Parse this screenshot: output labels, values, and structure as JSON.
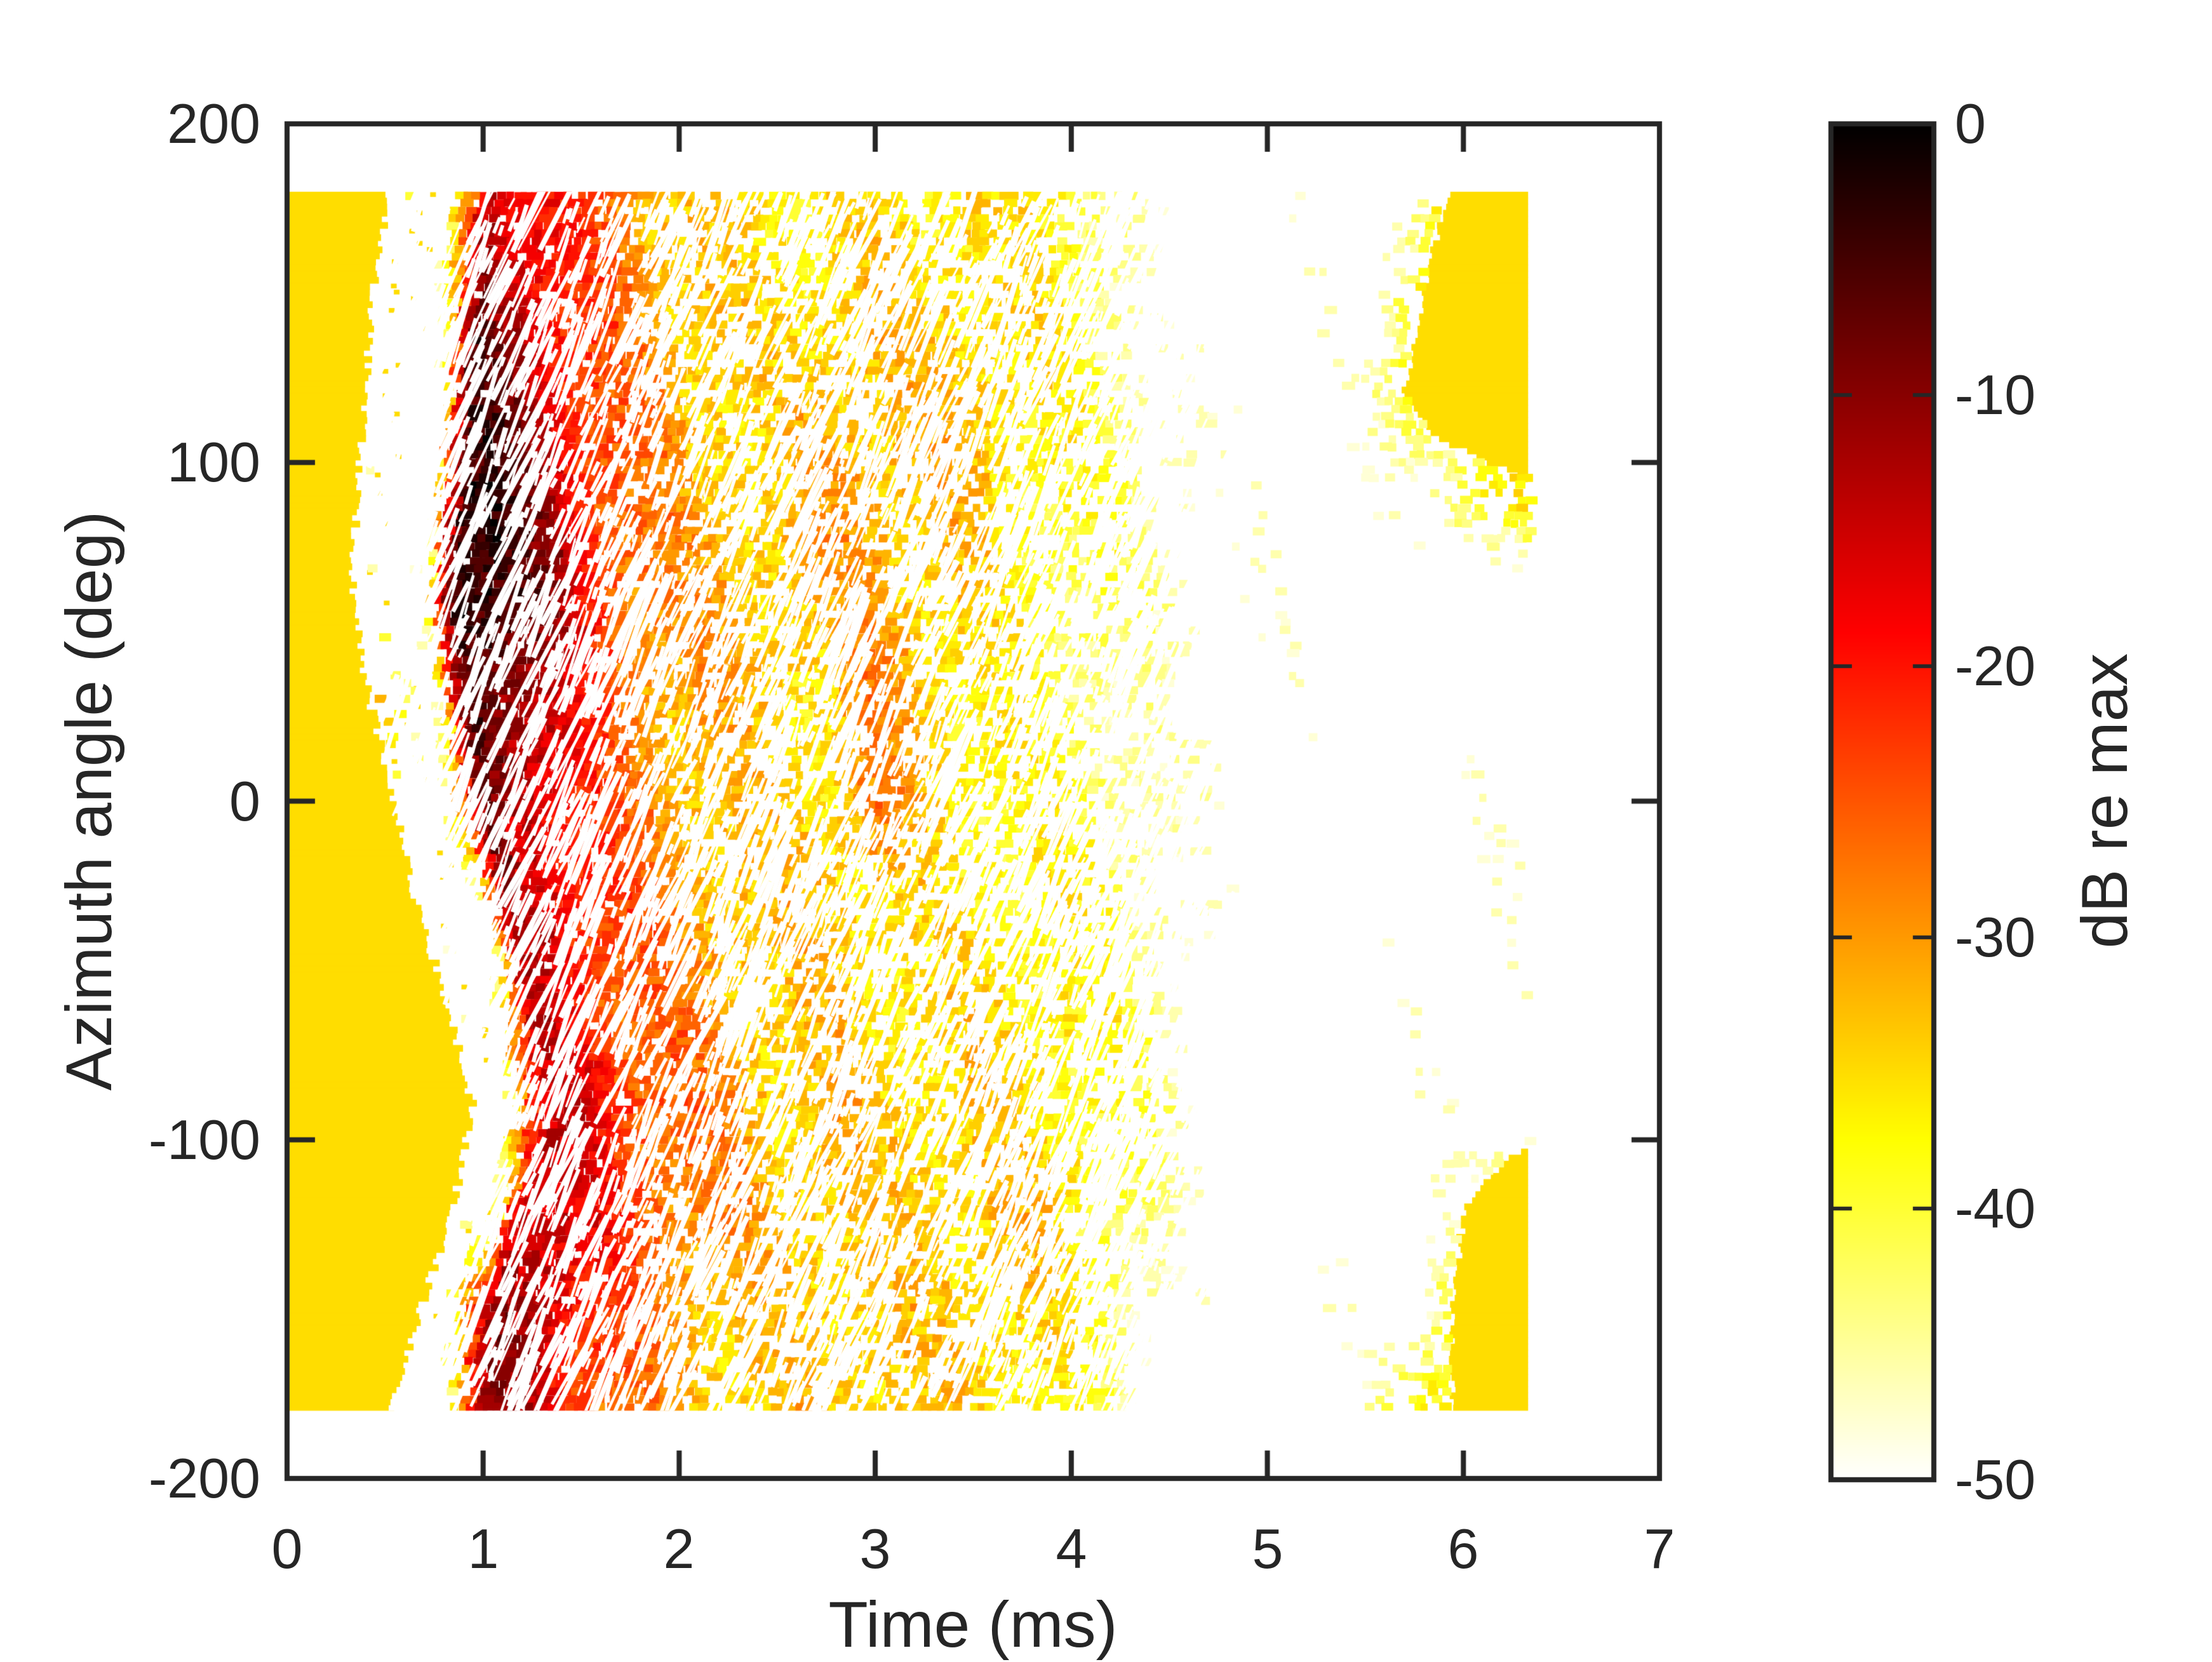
{
  "figure": {
    "background": "#ffffff",
    "frame_color": "#262626",
    "text_color": "#262626",
    "floor_color": "#ffdd00"
  },
  "axes": {
    "xlabel": "Time (ms)",
    "ylabel": "Azimuth angle (deg)",
    "xlim": [
      0,
      7
    ],
    "ylim": [
      -200,
      200
    ],
    "xticks": [
      0,
      1,
      2,
      3,
      4,
      5,
      6,
      7
    ],
    "yticks": [
      200,
      100,
      0,
      -100,
      -200
    ],
    "xticklabels": [
      "0",
      "1",
      "2",
      "3",
      "4",
      "5",
      "6",
      "7"
    ],
    "yticklabels": [
      "200",
      "100",
      "0",
      "-100",
      "-200"
    ]
  },
  "colorbar": {
    "label": "dB re max",
    "limits": [
      -50,
      0
    ],
    "ticks": [
      0,
      -10,
      -20,
      -30,
      -40,
      -50
    ],
    "ticklabels": [
      "0",
      "-10",
      "-20",
      "-30",
      "-40",
      "-50"
    ],
    "colormap": "reversed hot (0 dB = black, -50 dB = white)",
    "stops": [
      {
        "db": 0,
        "color": "#000000"
      },
      {
        "db": -10,
        "color": "#880000"
      },
      {
        "db": -20,
        "color": "#ff1100"
      },
      {
        "db": -30,
        "color": "#ff9900"
      },
      {
        "db": -40,
        "color": "#ffff33"
      },
      {
        "db": -50,
        "color": "#ffffff"
      }
    ]
  },
  "chart_data": {
    "type": "heatmap",
    "title": "",
    "xlabel": "Time (ms)",
    "ylabel": "Azimuth angle (deg)",
    "value_unit": "dB re max",
    "xlim": [
      0,
      7
    ],
    "ylim": [
      -200,
      200
    ],
    "clim": [
      -50,
      0
    ],
    "data_time_range": [
      0,
      6.33
    ],
    "data_azimuth_range": [
      -180,
      180
    ],
    "noise_floor_db": -35,
    "azimuth_rows": [
      180,
      150,
      120,
      90,
      60,
      30,
      0,
      -30,
      -60,
      -90,
      -120,
      -150,
      -180
    ],
    "time_cols": [
      0,
      0.25,
      0.5,
      0.75,
      1,
      1.25,
      1.5,
      1.75,
      2,
      2.25,
      2.5,
      2.75,
      3,
      3.25,
      3.5,
      3.75,
      4,
      4.25,
      4.5,
      4.75,
      5,
      5.25,
      5.5,
      5.75,
      6,
      6.25
    ],
    "values_db": [
      [
        -35,
        -35,
        -35,
        null,
        -14,
        -18,
        -26,
        -30,
        -33,
        -35,
        -36,
        -34,
        -35,
        -37,
        -36,
        -38,
        -40,
        -44,
        null,
        null,
        null,
        null,
        null,
        null,
        -35,
        -35
      ],
      [
        -35,
        -35,
        null,
        null,
        -10,
        -16,
        -25,
        -29,
        -32,
        -34,
        -35,
        -33,
        -34,
        -36,
        -35,
        -37,
        -39,
        -43,
        null,
        null,
        null,
        null,
        null,
        -36,
        -35,
        -35
      ],
      [
        -35,
        -35,
        null,
        null,
        -7,
        -14,
        -23,
        -28,
        -31,
        -33,
        -35,
        -32,
        -33,
        -35,
        -34,
        -36,
        -38,
        -42,
        -46,
        null,
        null,
        null,
        null,
        -35,
        -35,
        -35
      ],
      [
        -35,
        -35,
        null,
        null,
        -3,
        -11,
        -20,
        -26,
        -30,
        -32,
        -34,
        -31,
        -32,
        -34,
        -34,
        -36,
        -38,
        -41,
        -45,
        null,
        null,
        null,
        null,
        null,
        -38,
        -36
      ],
      [
        -35,
        -35,
        null,
        null,
        -2,
        -9,
        -18,
        -25,
        -29,
        -31,
        -33,
        -34,
        -31,
        -34,
        -35,
        -37,
        -39,
        -42,
        -46,
        null,
        null,
        null,
        null,
        null,
        null,
        null
      ],
      [
        -35,
        -35,
        -35,
        null,
        -6,
        -11,
        -20,
        -26,
        -30,
        -33,
        -35,
        -36,
        -29,
        -33,
        -36,
        -38,
        -40,
        -44,
        null,
        null,
        null,
        null,
        null,
        null,
        null,
        null
      ],
      [
        -35,
        -35,
        -35,
        null,
        -9,
        -12,
        -21,
        -27,
        -31,
        -34,
        -36,
        -35,
        -28,
        -34,
        -36,
        -37,
        -40,
        -44,
        -47,
        null,
        null,
        null,
        null,
        null,
        null,
        null
      ],
      [
        -35,
        -35,
        -35,
        null,
        null,
        -12,
        -18,
        -25,
        -30,
        -33,
        -35,
        -34,
        -33,
        -35,
        -36,
        -37,
        -39,
        -43,
        -47,
        null,
        null,
        null,
        null,
        null,
        null,
        null
      ],
      [
        -35,
        -35,
        -35,
        -35,
        null,
        -14,
        -19,
        -26,
        -30,
        -32,
        -34,
        -33,
        -34,
        -35,
        -35,
        -36,
        -38,
        -42,
        -46,
        null,
        null,
        null,
        null,
        null,
        null,
        null
      ],
      [
        -35,
        -35,
        -35,
        -35,
        null,
        -22,
        -15,
        -24,
        -28,
        -31,
        -33,
        -32,
        -33,
        -34,
        -34,
        -36,
        -37,
        -41,
        -45,
        null,
        null,
        null,
        null,
        null,
        null,
        null
      ],
      [
        -35,
        -35,
        -35,
        -35,
        null,
        -13,
        -19,
        -24,
        -28,
        -30,
        -32,
        -31,
        -33,
        -34,
        -34,
        -35,
        -37,
        -41,
        -46,
        null,
        null,
        null,
        null,
        null,
        null,
        -36
      ],
      [
        -35,
        -35,
        -35,
        null,
        -18,
        -10,
        -22,
        -27,
        -30,
        -32,
        -33,
        -32,
        -33,
        -35,
        -34,
        -36,
        -38,
        -42,
        -47,
        null,
        null,
        null,
        null,
        null,
        -35,
        -35
      ],
      [
        -35,
        -35,
        -35,
        null,
        -12,
        -16,
        -24,
        -28,
        -31,
        -33,
        -34,
        -33,
        -34,
        -36,
        -35,
        -37,
        -39,
        -43,
        null,
        null,
        null,
        null,
        null,
        -36,
        -35,
        -35
      ]
    ],
    "pre_arrival_edge": {
      "azimuth": [
        180,
        150,
        120,
        90,
        60,
        30,
        0,
        -30,
        -60,
        -90,
        -120,
        -150,
        -180
      ],
      "time": [
        0.52,
        0.44,
        0.4,
        0.36,
        0.33,
        0.42,
        0.55,
        0.66,
        0.82,
        0.95,
        0.85,
        0.68,
        0.53
      ]
    },
    "direct_arrival": {
      "azimuth": [
        180,
        150,
        120,
        90,
        60,
        30,
        0,
        -30,
        -60,
        -90,
        -120,
        -150,
        -180
      ],
      "time": [
        1.05,
        1.0,
        0.97,
        0.93,
        0.9,
        0.96,
        1.03,
        1.16,
        1.28,
        1.42,
        1.22,
        1.1,
        1.04
      ],
      "level_db": [
        -12,
        -10,
        -7,
        -3,
        -2,
        -6,
        -8,
        -12,
        -14,
        -16,
        -13,
        -10,
        -12
      ]
    },
    "right_floor_top": {
      "azimuth": [
        180,
        160,
        140,
        120,
        108,
        96
      ],
      "time_start": [
        5.93,
        5.84,
        5.76,
        5.7,
        5.85,
        6.28
      ],
      "time_end": 6.33
    },
    "right_floor_bottom": {
      "azimuth": [
        -102,
        -115,
        -130,
        -150,
        -165,
        -180
      ],
      "time_start": [
        6.3,
        6.05,
        5.98,
        5.95,
        5.93,
        5.95
      ],
      "time_end": 6.33
    }
  }
}
